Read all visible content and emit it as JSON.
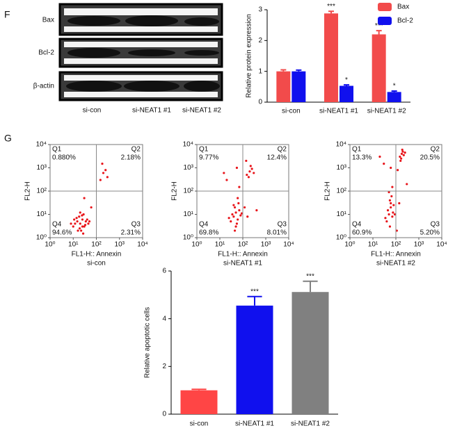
{
  "panel_labels": [
    "F",
    "G"
  ],
  "blot": {
    "rows": [
      "Bax",
      "Bcl-2",
      "β-actin"
    ],
    "lanes": [
      "si-con",
      "si-NEAT1 #1",
      "si-NEAT1 #2"
    ]
  },
  "chart_data": [
    {
      "type": "bar",
      "y_label": "Relative protein expression",
      "categories": [
        "si-con",
        "si-NEAT1 #1",
        "si-NEAT1 #2"
      ],
      "series": [
        {
          "name": "Bax",
          "color": "#f24b4b",
          "values": [
            1.0,
            2.88,
            2.2
          ],
          "errors": [
            0.05,
            0.07,
            0.12
          ],
          "annotations": [
            null,
            "***",
            "***"
          ]
        },
        {
          "name": "Bcl-2",
          "color": "#1010ee",
          "values": [
            1.0,
            0.53,
            0.33
          ],
          "errors": [
            0.04,
            0.03,
            0.03
          ],
          "annotations": [
            null,
            "*",
            "*"
          ]
        }
      ],
      "ylim": [
        0,
        3
      ],
      "yticks": [
        0,
        1,
        2,
        3
      ],
      "legend": "top-right"
    },
    {
      "type": "scatter",
      "y_label": "FL2-H",
      "x_label": "FL1-H:: Annexin",
      "subtitle": "si-con",
      "color": "#e8141a",
      "log": true,
      "xlim": [
        1,
        10000
      ],
      "ylim": [
        1,
        10000
      ],
      "xticks": [
        {
          "value": 1,
          "label": "10⁰"
        },
        {
          "value": 10,
          "label": "10¹"
        },
        {
          "value": 100,
          "label": "10²"
        },
        {
          "value": 1000,
          "label": "10³"
        },
        {
          "value": 10000,
          "label": "10⁴"
        }
      ],
      "yticks": [
        {
          "value": 1,
          "label": "10⁰"
        },
        {
          "value": 10,
          "label": "10¹"
        },
        {
          "value": 100,
          "label": "10²"
        },
        {
          "value": 1000,
          "label": "10³"
        },
        {
          "value": 10000,
          "label": "10⁴"
        }
      ],
      "gate": [
        100,
        100
      ],
      "quadrants": [
        "Q1",
        "Q2",
        "Q3",
        "Q4"
      ],
      "values": [
        0.88,
        2.18,
        2.31,
        94.6
      ],
      "value_labels": [
        "0.880%",
        "2.18%",
        "2.31%",
        "94.6%"
      ],
      "points": {
        "x": [
          10,
          15,
          20,
          25,
          30,
          18,
          22,
          12,
          35,
          28,
          40,
          16,
          20,
          25,
          8,
          50,
          300,
          200,
          150,
          30,
          14,
          24,
          33,
          19,
          11,
          45,
          60,
          180,
          250,
          27
        ],
        "y": [
          3,
          5,
          4,
          6,
          3,
          8,
          2,
          4,
          5,
          10,
          6,
          2,
          12,
          3,
          4,
          5,
          400,
          600,
          300,
          50,
          7,
          9,
          3.5,
          2.5,
          6,
          4,
          20,
          1500,
          800,
          1.5
        ]
      }
    },
    {
      "type": "scatter",
      "y_label": "FL2-H",
      "x_label": "FL1-H:: Annexin",
      "subtitle": "si-NEAT1 #1",
      "color": "#e8141a",
      "log": true,
      "xlim": [
        1,
        10000
      ],
      "ylim": [
        1,
        10000
      ],
      "xticks": [
        {
          "value": 1,
          "label": "10⁰"
        },
        {
          "value": 10,
          "label": "10¹"
        },
        {
          "value": 100,
          "label": "10²"
        },
        {
          "value": 1000,
          "label": "10³"
        },
        {
          "value": 10000,
          "label": "10⁴"
        }
      ],
      "yticks": [
        {
          "value": 1,
          "label": "10⁰"
        },
        {
          "value": 10,
          "label": "10¹"
        },
        {
          "value": 100,
          "label": "10²"
        },
        {
          "value": 1000,
          "label": "10³"
        },
        {
          "value": 10000,
          "label": "10⁴"
        }
      ],
      "gate": [
        100,
        100
      ],
      "quadrants": [
        "Q1",
        "Q2",
        "Q3",
        "Q4"
      ],
      "values": [
        9.77,
        12.4,
        8.01,
        69.8
      ],
      "value_labels": [
        "9.77%",
        "12.4%",
        "8.01%",
        "69.8%"
      ],
      "points": {
        "x": [
          30,
          40,
          50,
          60,
          70,
          45,
          55,
          35,
          80,
          65,
          50,
          40,
          60,
          25,
          90,
          150,
          200,
          250,
          180,
          300,
          220,
          20,
          70,
          120,
          160,
          45,
          15,
          55,
          400,
          140
        ],
        "y": [
          5,
          8,
          12,
          6,
          15,
          20,
          4,
          10,
          9,
          30,
          3,
          25,
          50,
          7,
          11,
          500,
          700,
          900,
          400,
          600,
          1200,
          300,
          150,
          20,
          8,
          2,
          600,
          1000,
          15,
          2000
        ]
      }
    },
    {
      "type": "scatter",
      "y_label": "FL2-H",
      "x_label": "FL1-H:: Annexin",
      "subtitle": "si-NEAT1 #2",
      "color": "#e8141a",
      "log": true,
      "xlim": [
        1,
        10000
      ],
      "ylim": [
        1,
        10000
      ],
      "xticks": [
        {
          "value": 1,
          "label": "10⁰"
        },
        {
          "value": 10,
          "label": "10¹"
        },
        {
          "value": 100,
          "label": "10²"
        },
        {
          "value": 1000,
          "label": "10³"
        },
        {
          "value": 10000,
          "label": "10⁴"
        }
      ],
      "yticks": [
        {
          "value": 1,
          "label": "10⁰"
        },
        {
          "value": 10,
          "label": "10¹"
        },
        {
          "value": 100,
          "label": "10²"
        },
        {
          "value": 1000,
          "label": "10³"
        },
        {
          "value": 10000,
          "label": "10⁴"
        }
      ],
      "gate": [
        100,
        100
      ],
      "quadrants": [
        "Q1",
        "Q2",
        "Q3",
        "Q4"
      ],
      "values": [
        13.3,
        20.5,
        5.2,
        60.9
      ],
      "value_labels": [
        "13.3%",
        "20.5%",
        "5.20%",
        "60.9%"
      ],
      "points": {
        "x": [
          40,
          50,
          60,
          70,
          55,
          45,
          65,
          75,
          50,
          60,
          80,
          35,
          70,
          55,
          150,
          180,
          200,
          220,
          170,
          190,
          160,
          250,
          30,
          120,
          140,
          90,
          20,
          60,
          300,
          110
        ],
        "y": [
          5,
          10,
          20,
          8,
          40,
          15,
          60,
          12,
          90,
          30,
          25,
          7,
          150,
          3,
          3000,
          4000,
          5000,
          3500,
          2500,
          6000,
          2000,
          4500,
          1500,
          800,
          30,
          10,
          3000,
          1000,
          200,
          2
        ]
      }
    },
    {
      "type": "bar",
      "y_label": "Relative apoptotic cells",
      "categories": [
        "si-con",
        "si-NEAT1 #1",
        "si-NEAT1 #2"
      ],
      "series": [
        {
          "colors": [
            "#ff4545",
            "#1010ee",
            "#808080"
          ],
          "values": [
            1.0,
            4.55,
            5.12
          ],
          "errors": [
            0.04,
            0.38,
            0.45
          ],
          "annotations": [
            null,
            "***",
            "***"
          ]
        }
      ],
      "ylim": [
        0,
        6
      ],
      "yticks": [
        0,
        2,
        4,
        6
      ]
    }
  ]
}
